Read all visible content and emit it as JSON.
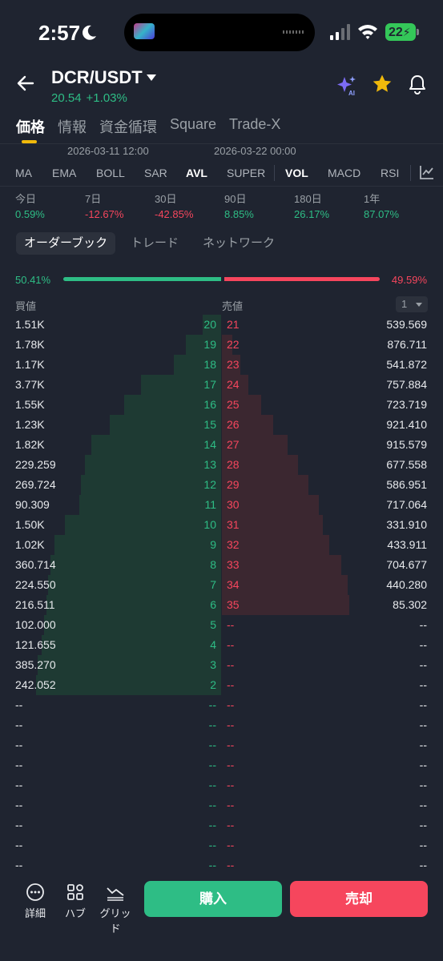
{
  "status": {
    "time": "2:57",
    "battery": "22"
  },
  "header": {
    "pair": "DCR/USDT",
    "price": "20.54",
    "change": "+1.03%"
  },
  "tabs": [
    "価格",
    "情報",
    "資金循環",
    "Square",
    "Trade-X"
  ],
  "chart_axis": {
    "left": "2026-03-11 12:00",
    "right": "2026-03-22 00:00"
  },
  "indicators": [
    "MA",
    "EMA",
    "BOLL",
    "SAR",
    "AVL",
    "SUPER",
    "VOL",
    "MACD",
    "RSI"
  ],
  "active_indicators": [
    "AVL",
    "VOL"
  ],
  "periods": [
    {
      "label": "今日",
      "value": "0.59%",
      "dir": "up"
    },
    {
      "label": "7日",
      "value": "-12.67%",
      "dir": "down"
    },
    {
      "label": "30日",
      "value": "-42.85%",
      "dir": "down"
    },
    {
      "label": "90日",
      "value": "8.85%",
      "dir": "up"
    },
    {
      "label": "180日",
      "value": "26.17%",
      "dir": "up"
    },
    {
      "label": "1年",
      "value": "87.07%",
      "dir": "up"
    }
  ],
  "subtabs": [
    "オーダーブック",
    "トレード",
    "ネットワーク"
  ],
  "ratio": {
    "buy": "50.41%",
    "sell": "49.59%",
    "buy_fraction": 0.5041
  },
  "columns": {
    "buy": "買値",
    "sell": "売値",
    "depth": "1"
  },
  "book": [
    {
      "bq": "1.51K",
      "bl": "20",
      "sl": "21",
      "sq": "539.569",
      "bd": 0.09,
      "sd": 0.0
    },
    {
      "bq": "1.78K",
      "bl": "19",
      "sl": "22",
      "sq": "876.711",
      "bd": 0.17,
      "sd": 0.05
    },
    {
      "bq": "1.17K",
      "bl": "18",
      "sl": "23",
      "sq": "541.872",
      "bd": 0.23,
      "sd": 0.09
    },
    {
      "bq": "3.77K",
      "bl": "17",
      "sl": "24",
      "sq": "757.884",
      "bd": 0.39,
      "sd": 0.13
    },
    {
      "bq": "1.55K",
      "bl": "16",
      "sl": "25",
      "sq": "723.719",
      "bd": 0.47,
      "sd": 0.19
    },
    {
      "bq": "1.23K",
      "bl": "15",
      "sl": "26",
      "sq": "921.410",
      "bd": 0.54,
      "sd": 0.25
    },
    {
      "bq": "1.82K",
      "bl": "14",
      "sl": "27",
      "sq": "915.579",
      "bd": 0.63,
      "sd": 0.32
    },
    {
      "bq": "229.259",
      "bl": "13",
      "sl": "28",
      "sq": "677.558",
      "bd": 0.66,
      "sd": 0.37
    },
    {
      "bq": "269.724",
      "bl": "12",
      "sl": "29",
      "sq": "586.951",
      "bd": 0.68,
      "sd": 0.42
    },
    {
      "bq": "90.309",
      "bl": "11",
      "sl": "30",
      "sq": "717.064",
      "bd": 0.69,
      "sd": 0.47
    },
    {
      "bq": "1.50K",
      "bl": "10",
      "sl": "31",
      "sq": "331.910",
      "bd": 0.76,
      "sd": 0.49
    },
    {
      "bq": "1.02K",
      "bl": "9",
      "sl": "32",
      "sq": "433.911",
      "bd": 0.81,
      "sd": 0.52
    },
    {
      "bq": "360.714",
      "bl": "8",
      "sl": "33",
      "sq": "704.677",
      "bd": 0.83,
      "sd": 0.58
    },
    {
      "bq": "224.550",
      "bl": "7",
      "sl": "34",
      "sq": "440.280",
      "bd": 0.84,
      "sd": 0.61
    },
    {
      "bq": "216.511",
      "bl": "6",
      "sl": "35",
      "sq": "85.302",
      "bd": 0.85,
      "sd": 0.62
    },
    {
      "bq": "102.000",
      "bl": "5",
      "sl": "--",
      "sq": "--",
      "bd": 0.86,
      "sd": 0
    },
    {
      "bq": "121.655",
      "bl": "4",
      "sl": "--",
      "sq": "--",
      "bd": 0.87,
      "sd": 0
    },
    {
      "bq": "385.270",
      "bl": "3",
      "sl": "--",
      "sq": "--",
      "bd": 0.89,
      "sd": 0
    },
    {
      "bq": "242.052",
      "bl": "2",
      "sl": "--",
      "sq": "--",
      "bd": 0.9,
      "sd": 0
    },
    {
      "bq": "--",
      "bl": "--",
      "sl": "--",
      "sq": "--",
      "bd": 0,
      "sd": 0
    },
    {
      "bq": "--",
      "bl": "--",
      "sl": "--",
      "sq": "--",
      "bd": 0,
      "sd": 0
    },
    {
      "bq": "--",
      "bl": "--",
      "sl": "--",
      "sq": "--",
      "bd": 0,
      "sd": 0
    },
    {
      "bq": "--",
      "bl": "--",
      "sl": "--",
      "sq": "--",
      "bd": 0,
      "sd": 0
    },
    {
      "bq": "--",
      "bl": "--",
      "sl": "--",
      "sq": "--",
      "bd": 0,
      "sd": 0
    },
    {
      "bq": "--",
      "bl": "--",
      "sl": "--",
      "sq": "--",
      "bd": 0,
      "sd": 0
    },
    {
      "bq": "--",
      "bl": "--",
      "sl": "--",
      "sq": "--",
      "bd": 0,
      "sd": 0
    },
    {
      "bq": "--",
      "bl": "--",
      "sl": "--",
      "sq": "--",
      "bd": 0,
      "sd": 0
    },
    {
      "bq": "--",
      "bl": "--",
      "sl": "--",
      "sq": "--",
      "bd": 0,
      "sd": 0
    }
  ],
  "bottom": {
    "details": "詳細",
    "hub": "ハブ",
    "grid": "グリッド",
    "buy": "購入",
    "sell": "売却"
  },
  "colors": {
    "up": "#2ebd85",
    "down": "#f6465d",
    "accent": "#f0b90b"
  }
}
